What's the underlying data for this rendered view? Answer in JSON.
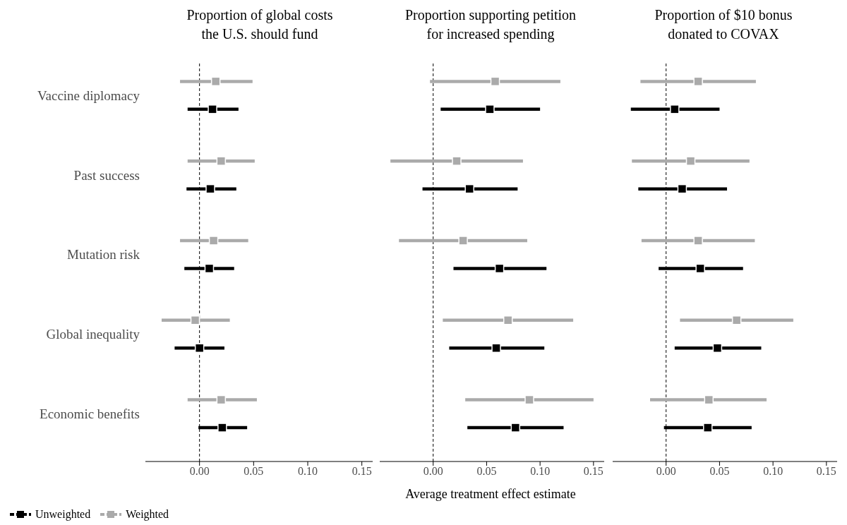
{
  "chart_data": [
    {
      "type": "scatter",
      "orientation": "horizontal",
      "title": "Proportion of global costs\nthe U.S. should fund",
      "categories": [
        "Vaccine diplomacy",
        "Past success",
        "Mutation risk",
        "Global inequality",
        "Economic benefits"
      ],
      "series": [
        {
          "name": "Unweighted",
          "color": "#000000",
          "values": [
            0.012,
            0.01,
            0.009,
            0.0,
            0.021
          ],
          "errors": [
            [
              -0.011,
              0.036
            ],
            [
              -0.012,
              0.034
            ],
            [
              -0.014,
              0.032
            ],
            [
              -0.023,
              0.023
            ],
            [
              -0.001,
              0.044
            ]
          ]
        },
        {
          "name": "Weighted",
          "color": "#aaaaaa",
          "values": [
            0.015,
            0.02,
            0.013,
            -0.004,
            0.02
          ],
          "errors": [
            [
              -0.018,
              0.049
            ],
            [
              -0.011,
              0.051
            ],
            [
              -0.018,
              0.045
            ],
            [
              -0.035,
              0.028
            ],
            [
              -0.011,
              0.053
            ]
          ]
        }
      ],
      "xlim": [
        -0.05,
        0.16
      ],
      "xticks": [
        {
          "value": 0,
          "label": "0.00"
        },
        {
          "value": 0.05,
          "label": "0.05"
        },
        {
          "value": 0.1,
          "label": "0.10"
        },
        {
          "value": 0.15,
          "label": "0.15"
        }
      ],
      "marker": "square",
      "legend": "bottom left",
      "ref_lines": [
        {
          "axis": "x",
          "value": 0,
          "line_style": "dashed"
        }
      ]
    },
    {
      "type": "scatter",
      "orientation": "horizontal",
      "title": "Proportion supporting petition\nfor increased spending",
      "xlabel": "Average treatment effect estimate",
      "categories": [
        null,
        null,
        null,
        null,
        null
      ],
      "series": [
        {
          "color": "#000000",
          "values": [
            0.053,
            0.034,
            0.062,
            0.059,
            0.077
          ],
          "errors": [
            [
              0.007,
              0.1
            ],
            [
              -0.01,
              0.079
            ],
            [
              0.019,
              0.106
            ],
            [
              0.015,
              0.104
            ],
            [
              0.032,
              0.122
            ]
          ]
        },
        {
          "color": "#aaaaaa",
          "values": [
            0.058,
            0.022,
            0.028,
            0.07,
            0.09
          ],
          "errors": [
            [
              -0.003,
              0.119
            ],
            [
              -0.04,
              0.084
            ],
            [
              -0.032,
              0.088
            ],
            [
              0.009,
              0.131
            ],
            [
              0.03,
              0.15
            ]
          ]
        }
      ],
      "xlim": [
        -0.05,
        0.16
      ],
      "xticks": [
        {
          "value": 0,
          "label": "0.00"
        },
        {
          "value": 0.05,
          "label": "0.05"
        },
        {
          "value": 0.1,
          "label": "0.10"
        },
        {
          "value": 0.15,
          "label": "0.15"
        }
      ],
      "marker": "square",
      "tick_labels": "x",
      "ref_lines": [
        {
          "axis": "x",
          "value": 0,
          "line_style": "dashed"
        }
      ]
    },
    {
      "type": "scatter",
      "orientation": "horizontal",
      "title": "Proportion of $10 bonus\ndonated to COVAX",
      "categories": [
        null,
        null,
        null,
        null,
        null
      ],
      "series": [
        {
          "color": "#000000",
          "values": [
            0.008,
            0.015,
            0.032,
            0.048,
            0.039
          ],
          "errors": [
            [
              -0.033,
              0.05
            ],
            [
              -0.026,
              0.057
            ],
            [
              -0.007,
              0.072
            ],
            [
              0.008,
              0.089
            ],
            [
              -0.002,
              0.08
            ]
          ]
        },
        {
          "color": "#aaaaaa",
          "values": [
            0.03,
            0.023,
            0.03,
            0.066,
            0.04
          ],
          "errors": [
            [
              -0.024,
              0.084
            ],
            [
              -0.032,
              0.078
            ],
            [
              -0.023,
              0.083
            ],
            [
              0.013,
              0.119
            ],
            [
              -0.015,
              0.094
            ]
          ]
        }
      ],
      "xlim": [
        -0.05,
        0.16
      ],
      "xticks": [
        {
          "value": 0,
          "label": "0.00"
        },
        {
          "value": 0.05,
          "label": "0.05"
        },
        {
          "value": 0.1,
          "label": "0.10"
        },
        {
          "value": 0.15,
          "label": "0.15"
        }
      ],
      "marker": "square",
      "tick_labels": "x",
      "ref_lines": [
        {
          "axis": "x",
          "value": 0,
          "line_style": "dashed"
        }
      ]
    }
  ]
}
